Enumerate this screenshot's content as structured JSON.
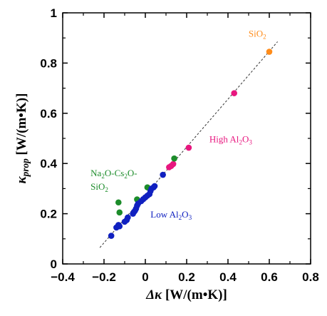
{
  "chart_data": {
    "type": "scatter",
    "title": "",
    "xlabel": {
      "parts": [
        {
          "text": "Δκ",
          "style": "italic"
        },
        {
          "text": " [W/(m",
          "style": "normal"
        },
        {
          "text": "•",
          "style": "normal"
        },
        {
          "text": "K)]",
          "style": "normal"
        }
      ]
    },
    "ylabel": {
      "parts": [
        {
          "text": "κ",
          "style": "italic"
        },
        {
          "text": "prop",
          "style": "italic-sub"
        },
        {
          "text": " [W/(m",
          "style": "normal"
        },
        {
          "text": "•",
          "style": "normal"
        },
        {
          "text": "K)]",
          "style": "normal"
        }
      ]
    },
    "xlim": [
      -0.4,
      0.8
    ],
    "ylim": [
      0,
      1
    ],
    "xticks": [
      {
        "value": -0.4,
        "label": "−0.4"
      },
      {
        "value": -0.2,
        "label": "−0.2"
      },
      {
        "value": 0,
        "label": "0"
      },
      {
        "value": 0.2,
        "label": "0.2"
      },
      {
        "value": 0.4,
        "label": "0.4"
      },
      {
        "value": 0.6,
        "label": "0.6"
      },
      {
        "value": 0.8,
        "label": "0.8"
      }
    ],
    "yticks": [
      {
        "value": 0,
        "label": "0"
      },
      {
        "value": 0.2,
        "label": "0.2"
      },
      {
        "value": 0.4,
        "label": "0.4"
      },
      {
        "value": 0.6,
        "label": "0.6"
      },
      {
        "value": 0.8,
        "label": "0.8"
      },
      {
        "value": 1,
        "label": "1"
      }
    ],
    "grid": false,
    "reference_line": {
      "style": "dashed",
      "color": "#333333",
      "x": [
        -0.22,
        0.64
      ],
      "y": [
        0.065,
        0.885
      ]
    },
    "series": [
      {
        "color": "#ff8c1a",
        "points": [
          [
            0.6,
            0.845
          ]
        ]
      },
      {
        "color": "#e8167f",
        "points": [
          [
            0.43,
            0.68
          ],
          [
            0.21,
            0.463
          ],
          [
            0.135,
            0.398
          ],
          [
            0.125,
            0.39
          ],
          [
            0.115,
            0.385
          ]
        ]
      },
      {
        "color": "#1c8c2a",
        "points": [
          [
            0.14,
            0.42
          ],
          [
            0.01,
            0.305
          ],
          [
            -0.04,
            0.257
          ],
          [
            -0.13,
            0.245
          ],
          [
            -0.125,
            0.205
          ]
        ]
      },
      {
        "color": "#1020c0",
        "points": [
          [
            -0.165,
            0.112
          ],
          [
            -0.14,
            0.145
          ],
          [
            -0.125,
            0.15
          ],
          [
            -0.13,
            0.155
          ],
          [
            -0.1,
            0.168
          ],
          [
            -0.09,
            0.175
          ],
          [
            -0.085,
            0.185
          ],
          [
            -0.06,
            0.2
          ],
          [
            -0.055,
            0.207
          ],
          [
            -0.05,
            0.212
          ],
          [
            -0.045,
            0.22
          ],
          [
            -0.04,
            0.232
          ],
          [
            -0.035,
            0.24
          ],
          [
            -0.02,
            0.25
          ],
          [
            -0.01,
            0.258
          ],
          [
            0.0,
            0.265
          ],
          [
            0.01,
            0.272
          ],
          [
            0.02,
            0.278
          ],
          [
            0.025,
            0.29
          ],
          [
            0.03,
            0.3
          ],
          [
            0.04,
            0.305
          ],
          [
            0.045,
            0.31
          ],
          [
            0.085,
            0.355
          ]
        ]
      }
    ],
    "annotations": [
      {
        "color": "#ff8c1a",
        "anchor": "end",
        "x": 0.585,
        "y": 0.905,
        "parts": [
          {
            "text": "SiO",
            "style": "normal"
          },
          {
            "text": "2",
            "style": "sub"
          }
        ]
      },
      {
        "color": "#e8167f",
        "anchor": "start",
        "x": 0.31,
        "y": 0.485,
        "parts": [
          {
            "text": "High Al",
            "style": "normal"
          },
          {
            "text": "2",
            "style": "sub"
          },
          {
            "text": "O",
            "style": "normal"
          },
          {
            "text": "3",
            "style": "sub"
          }
        ]
      },
      {
        "color": "#1c8c2a",
        "anchor": "start",
        "x": -0.265,
        "y": 0.35,
        "parts": [
          {
            "text": "Na",
            "style": "normal"
          },
          {
            "text": "2",
            "style": "sub"
          },
          {
            "text": "O-Cs",
            "style": "normal"
          },
          {
            "text": "2",
            "style": "sub"
          },
          {
            "text": "O-",
            "style": "normal"
          }
        ]
      },
      {
        "color": "#1c8c2a",
        "anchor": "start",
        "x": -0.265,
        "y": 0.295,
        "parts": [
          {
            "text": "SiO",
            "style": "normal"
          },
          {
            "text": "2",
            "style": "sub"
          }
        ]
      },
      {
        "color": "#1020c0",
        "anchor": "start",
        "x": 0.025,
        "y": 0.185,
        "parts": [
          {
            "text": "Low Al",
            "style": "normal"
          },
          {
            "text": "2",
            "style": "sub"
          },
          {
            "text": "O",
            "style": "normal"
          },
          {
            "text": "3",
            "style": "sub"
          }
        ]
      }
    ]
  }
}
